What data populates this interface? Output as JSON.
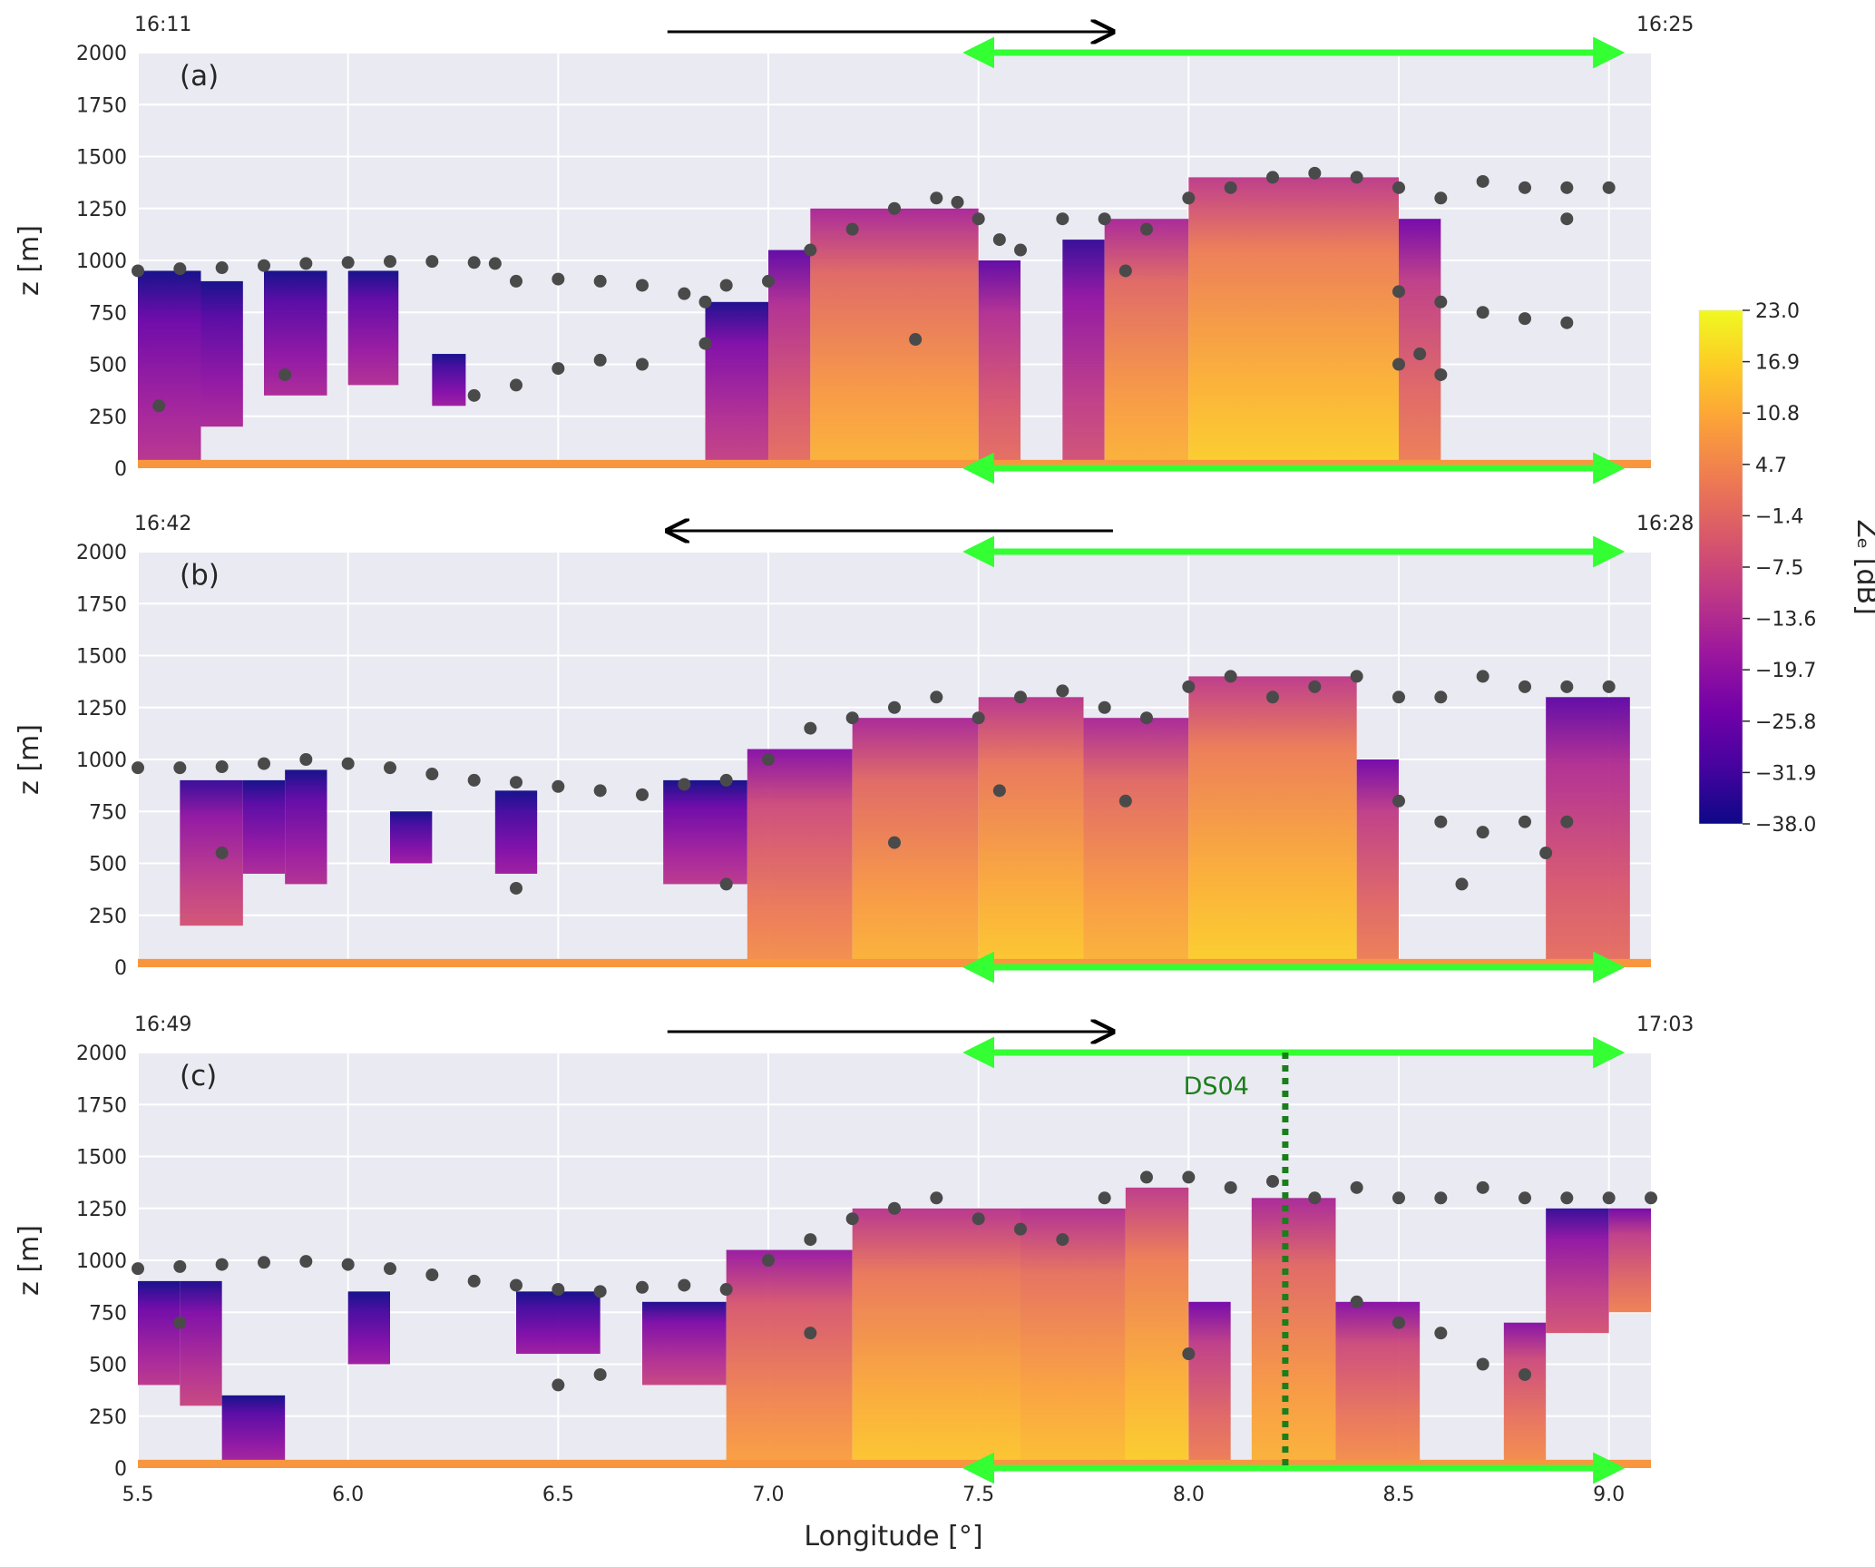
{
  "chart_data": {
    "type": "heatmap",
    "x_axis": {
      "label": "Longitude [°]",
      "range": [
        5.5,
        9.1
      ],
      "ticks": [
        5.5,
        6.0,
        6.5,
        7.0,
        7.5,
        8.0,
        8.5,
        9.0
      ],
      "tick_labels": [
        "5.5",
        "6.0",
        "6.5",
        "7.0",
        "7.5",
        "8.0",
        "8.5",
        "9.0"
      ]
    },
    "y_axis": {
      "label": "z [m]",
      "range": [
        0,
        2000
      ],
      "ticks": [
        0,
        250,
        500,
        750,
        1000,
        1250,
        1500,
        1750,
        2000
      ],
      "tick_labels": [
        "0",
        "250",
        "500",
        "750",
        "1000",
        "1250",
        "1500",
        "1750",
        "2000"
      ]
    },
    "colorbar": {
      "label": "Zₑ [dB]",
      "range": [
        -38.0,
        23.0
      ],
      "ticks": [
        23.0,
        16.9,
        10.8,
        4.7,
        -1.4,
        -7.5,
        -13.6,
        -19.7,
        -25.8,
        -31.9,
        -38.0
      ],
      "tick_labels": [
        "23.0",
        "16.9",
        "10.8",
        "4.7",
        "−1.4",
        "−7.5",
        "−13.6",
        "−19.7",
        "−25.8",
        "−31.9",
        "−38.0"
      ],
      "colormap": [
        "#0d0887",
        "#46039f",
        "#7201a8",
        "#9c179e",
        "#bd3786",
        "#d8576b",
        "#ed7953",
        "#fb9f3a",
        "#fdca26",
        "#f0f921"
      ]
    },
    "grid": true,
    "highlight_range": {
      "x": [
        7.5,
        9.0
      ],
      "color": "#33ff33"
    },
    "colors": {
      "cloud_top_points": "#4a4a4a",
      "background": "#eaeaf2",
      "arrow": "#000000",
      "ds_line": "#1a7f1a"
    },
    "panels": [
      {
        "label": "(a)",
        "time_start": "16:11",
        "time_end": "16:25",
        "arrow_direction": "east",
        "arrow_x": [
          6.76,
          7.82
        ],
        "cloud_top_points": [
          [
            5.5,
            950
          ],
          [
            5.6,
            960
          ],
          [
            5.7,
            965
          ],
          [
            5.8,
            975
          ],
          [
            5.9,
            985
          ],
          [
            6.0,
            990
          ],
          [
            6.1,
            995
          ],
          [
            6.2,
            995
          ],
          [
            6.3,
            990
          ],
          [
            6.35,
            985
          ],
          [
            6.4,
            900
          ],
          [
            6.5,
            910
          ],
          [
            6.6,
            900
          ],
          [
            6.7,
            880
          ],
          [
            6.8,
            840
          ],
          [
            6.85,
            800
          ],
          [
            6.9,
            880
          ],
          [
            7.0,
            900
          ],
          [
            7.1,
            1050
          ],
          [
            7.2,
            1150
          ],
          [
            7.3,
            1250
          ],
          [
            7.4,
            1300
          ],
          [
            7.45,
            1280
          ],
          [
            7.5,
            1200
          ],
          [
            7.55,
            1100
          ],
          [
            7.6,
            1050
          ],
          [
            7.7,
            1200
          ],
          [
            7.8,
            1200
          ],
          [
            7.9,
            1150
          ],
          [
            8.0,
            1300
          ],
          [
            8.1,
            1350
          ],
          [
            8.2,
            1400
          ],
          [
            8.3,
            1420
          ],
          [
            8.4,
            1400
          ],
          [
            8.5,
            1350
          ],
          [
            8.6,
            1300
          ],
          [
            8.7,
            1380
          ],
          [
            8.8,
            1350
          ],
          [
            8.9,
            1350
          ],
          [
            9.0,
            1350
          ],
          [
            8.5,
            850
          ],
          [
            8.6,
            800
          ],
          [
            8.7,
            750
          ],
          [
            8.8,
            720
          ],
          [
            8.9,
            700
          ],
          [
            8.55,
            550
          ],
          [
            8.5,
            500
          ],
          [
            8.6,
            450
          ],
          [
            6.85,
            600
          ],
          [
            6.7,
            500
          ],
          [
            6.6,
            520
          ],
          [
            6.5,
            480
          ],
          [
            6.4,
            400
          ],
          [
            6.3,
            350
          ],
          [
            5.55,
            300
          ],
          [
            5.45,
            300
          ],
          [
            5.85,
            450
          ],
          [
            7.35,
            620
          ],
          [
            8.9,
            1200
          ],
          [
            7.85,
            950
          ]
        ],
        "radar_columns": [
          [
            5.5,
            5.65,
            0,
            950,
            0.25
          ],
          [
            5.65,
            5.75,
            200,
            900,
            0.2
          ],
          [
            5.8,
            5.95,
            350,
            950,
            0.2
          ],
          [
            6.0,
            6.12,
            400,
            950,
            0.22
          ],
          [
            6.2,
            6.28,
            300,
            550,
            0.15
          ],
          [
            6.85,
            7.0,
            0,
            800,
            0.3
          ],
          [
            7.0,
            7.1,
            0,
            1050,
            0.45
          ],
          [
            7.1,
            7.5,
            0,
            1250,
            0.65
          ],
          [
            7.5,
            7.6,
            0,
            1000,
            0.45
          ],
          [
            7.7,
            7.8,
            0,
            1100,
            0.35
          ],
          [
            7.8,
            8.0,
            0,
            1200,
            0.65
          ],
          [
            8.0,
            8.5,
            0,
            1400,
            0.72
          ],
          [
            8.5,
            8.6,
            0,
            1200,
            0.5
          ]
        ]
      },
      {
        "label": "(b)",
        "time_start": "16:42",
        "time_end": "16:28",
        "arrow_direction": "west",
        "arrow_x": [
          6.76,
          7.82
        ],
        "cloud_top_points": [
          [
            5.5,
            960
          ],
          [
            5.6,
            960
          ],
          [
            5.7,
            965
          ],
          [
            5.8,
            980
          ],
          [
            5.9,
            1000
          ],
          [
            6.0,
            980
          ],
          [
            6.1,
            960
          ],
          [
            6.2,
            930
          ],
          [
            6.3,
            900
          ],
          [
            6.4,
            890
          ],
          [
            6.5,
            870
          ],
          [
            6.6,
            850
          ],
          [
            6.7,
            830
          ],
          [
            6.8,
            880
          ],
          [
            6.9,
            900
          ],
          [
            7.0,
            1000
          ],
          [
            7.1,
            1150
          ],
          [
            7.2,
            1200
          ],
          [
            7.3,
            1250
          ],
          [
            7.4,
            1300
          ],
          [
            7.5,
            1200
          ],
          [
            7.6,
            1300
          ],
          [
            7.7,
            1330
          ],
          [
            7.8,
            1250
          ],
          [
            7.9,
            1200
          ],
          [
            8.0,
            1350
          ],
          [
            8.1,
            1400
          ],
          [
            8.2,
            1300
          ],
          [
            8.3,
            1350
          ],
          [
            8.4,
            1400
          ],
          [
            8.5,
            1300
          ],
          [
            8.6,
            1300
          ],
          [
            8.7,
            1400
          ],
          [
            8.8,
            1350
          ],
          [
            8.9,
            1350
          ],
          [
            9.0,
            1350
          ],
          [
            8.5,
            800
          ],
          [
            8.6,
            700
          ],
          [
            8.7,
            650
          ],
          [
            8.8,
            700
          ],
          [
            8.9,
            700
          ],
          [
            6.4,
            380
          ],
          [
            5.7,
            550
          ],
          [
            7.3,
            600
          ],
          [
            7.85,
            800
          ],
          [
            8.65,
            400
          ],
          [
            8.85,
            550
          ],
          [
            7.55,
            850
          ],
          [
            6.9,
            400
          ]
        ],
        "radar_columns": [
          [
            5.6,
            5.75,
            200,
            900,
            0.35
          ],
          [
            5.75,
            5.85,
            450,
            900,
            0.2
          ],
          [
            5.85,
            5.95,
            400,
            950,
            0.22
          ],
          [
            6.1,
            6.2,
            500,
            750,
            0.15
          ],
          [
            6.35,
            6.45,
            450,
            850,
            0.15
          ],
          [
            6.75,
            6.95,
            400,
            900,
            0.25
          ],
          [
            6.95,
            7.2,
            0,
            1050,
            0.55
          ],
          [
            7.2,
            7.5,
            0,
            1200,
            0.65
          ],
          [
            7.5,
            7.75,
            0,
            1300,
            0.7
          ],
          [
            7.75,
            8.0,
            0,
            1200,
            0.65
          ],
          [
            8.0,
            8.4,
            0,
            1400,
            0.72
          ],
          [
            8.4,
            8.5,
            0,
            1000,
            0.5
          ],
          [
            8.85,
            9.05,
            0,
            1300,
            0.45
          ]
        ]
      },
      {
        "label": "(c)",
        "time_start": "16:49",
        "time_end": "17:03",
        "arrow_direction": "east",
        "arrow_x": [
          6.76,
          7.82
        ],
        "ds_label": "DS04",
        "ds_x": 8.23,
        "cloud_top_points": [
          [
            5.5,
            960
          ],
          [
            5.6,
            970
          ],
          [
            5.7,
            980
          ],
          [
            5.8,
            990
          ],
          [
            5.9,
            995
          ],
          [
            6.0,
            980
          ],
          [
            6.1,
            960
          ],
          [
            6.2,
            930
          ],
          [
            6.3,
            900
          ],
          [
            6.4,
            880
          ],
          [
            6.5,
            860
          ],
          [
            6.6,
            850
          ],
          [
            6.7,
            870
          ],
          [
            6.8,
            880
          ],
          [
            6.9,
            860
          ],
          [
            7.0,
            1000
          ],
          [
            7.1,
            1100
          ],
          [
            7.2,
            1200
          ],
          [
            7.3,
            1250
          ],
          [
            7.4,
            1300
          ],
          [
            7.5,
            1200
          ],
          [
            7.6,
            1150
          ],
          [
            7.7,
            1100
          ],
          [
            7.8,
            1300
          ],
          [
            7.9,
            1400
          ],
          [
            8.0,
            1400
          ],
          [
            8.1,
            1350
          ],
          [
            8.2,
            1380
          ],
          [
            8.3,
            1300
          ],
          [
            8.4,
            1350
          ],
          [
            8.5,
            1300
          ],
          [
            8.6,
            1300
          ],
          [
            8.7,
            1350
          ],
          [
            8.8,
            1300
          ],
          [
            8.9,
            1300
          ],
          [
            9.0,
            1300
          ],
          [
            9.1,
            1300
          ],
          [
            8.0,
            550
          ],
          [
            8.5,
            700
          ],
          [
            8.6,
            650
          ],
          [
            8.7,
            500
          ],
          [
            8.8,
            450
          ],
          [
            6.5,
            400
          ],
          [
            6.6,
            450
          ],
          [
            5.6,
            700
          ],
          [
            7.1,
            650
          ],
          [
            8.4,
            800
          ]
        ],
        "radar_columns": [
          [
            5.5,
            5.6,
            400,
            900,
            0.25
          ],
          [
            5.6,
            5.7,
            300,
            900,
            0.3
          ],
          [
            5.7,
            5.85,
            0,
            350,
            0.2
          ],
          [
            6.0,
            6.1,
            500,
            850,
            0.15
          ],
          [
            6.4,
            6.6,
            550,
            850,
            0.15
          ],
          [
            6.7,
            6.9,
            400,
            800,
            0.3
          ],
          [
            6.9,
            7.2,
            0,
            1050,
            0.6
          ],
          [
            7.2,
            7.6,
            0,
            1250,
            0.7
          ],
          [
            7.6,
            7.85,
            0,
            1250,
            0.68
          ],
          [
            7.85,
            8.0,
            0,
            1350,
            0.72
          ],
          [
            8.0,
            8.1,
            0,
            800,
            0.5
          ],
          [
            8.15,
            8.35,
            0,
            1300,
            0.65
          ],
          [
            8.35,
            8.55,
            0,
            800,
            0.55
          ],
          [
            8.75,
            8.85,
            0,
            700,
            0.55
          ],
          [
            8.85,
            9.0,
            650,
            1250,
            0.35
          ],
          [
            9.0,
            9.1,
            750,
            1250,
            0.5
          ]
        ]
      }
    ]
  }
}
